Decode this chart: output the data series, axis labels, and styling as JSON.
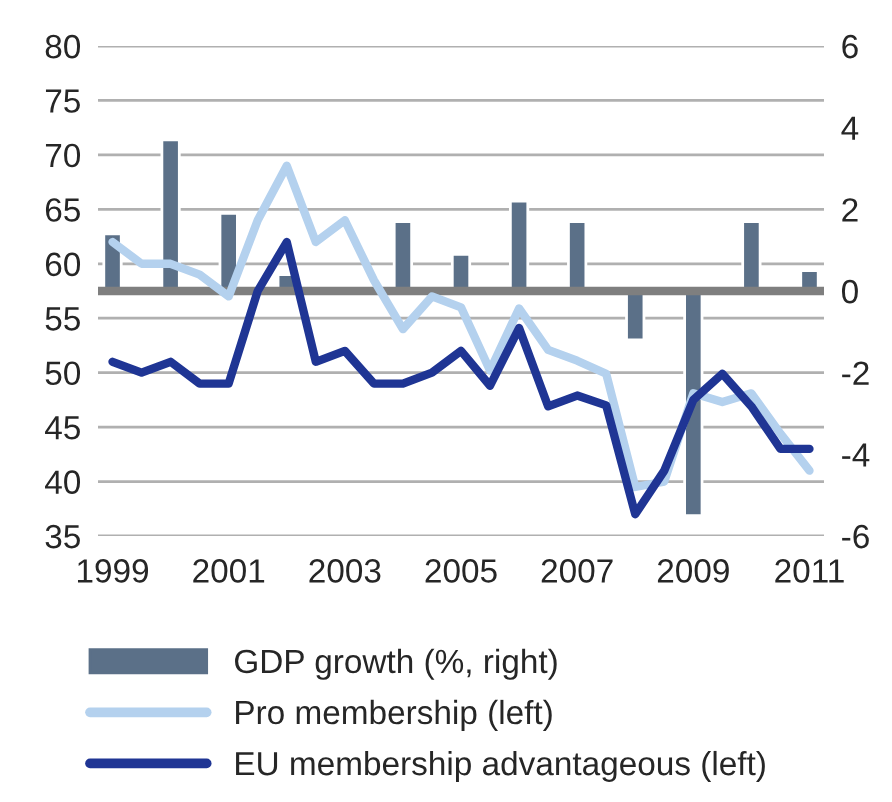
{
  "chart_data": {
    "type": "line",
    "xlim": [
      1998.75,
      2011.25
    ],
    "xticks": [
      1999,
      2001,
      2003,
      2005,
      2007,
      2009,
      2011
    ],
    "ylim": [
      35,
      80
    ],
    "yticks": [
      35,
      40,
      45,
      50,
      55,
      60,
      65,
      70,
      75,
      80
    ],
    "y2lim": [
      -6,
      6
    ],
    "y2ticks": [
      -6,
      -4,
      -2,
      0,
      2,
      4,
      6
    ],
    "grid": "y",
    "legend": "bottom",
    "ref_lines": [
      {
        "axis": "y2",
        "value": 0,
        "color": "#7f7f7f"
      }
    ],
    "series": [
      {
        "name": "GDP growth (%, right)",
        "type": "bar",
        "axis": "y2",
        "color": "#5b7088",
        "x": [
          1999,
          2000,
          2001,
          2002,
          2003,
          2004,
          2005,
          2006,
          2007,
          2008,
          2009,
          2010,
          2011
        ],
        "values": [
          1.4,
          3.7,
          1.9,
          0.4,
          null,
          1.7,
          0.9,
          2.2,
          1.7,
          -1.2,
          -5.5,
          1.7,
          0.5
        ]
      },
      {
        "name": "Pro membership (left)",
        "color": "#b4d1ee",
        "x": [
          1999,
          1999.5,
          2000,
          2000.5,
          2001,
          2001.5,
          2002,
          2002.5,
          2003,
          2003.5,
          2004,
          2004.5,
          2005,
          2005.5,
          2006,
          2006.5,
          2007,
          2007.5,
          2008,
          2008.5,
          2009,
          2009.5,
          2010,
          2010.5,
          2011
        ],
        "values": [
          62,
          60,
          60,
          59,
          57,
          64,
          69,
          62,
          64,
          58.5,
          54,
          57,
          56,
          50.2,
          55.9,
          52.1,
          51.1,
          49.9,
          39.5,
          40,
          48.1,
          47.3,
          48.1,
          44.4,
          41
        ]
      },
      {
        "name": "EU membership advantageous (left)",
        "color": "#1f3594",
        "x": [
          1999,
          1999.5,
          2000,
          2000.5,
          2001,
          2001.5,
          2002,
          2002.5,
          2003,
          2003.5,
          2004,
          2004.5,
          2005,
          2005.5,
          2006,
          2006.5,
          2007,
          2007.5,
          2008,
          2008.5,
          2009,
          2009.5,
          2010,
          2010.5,
          2011
        ],
        "values": [
          51,
          50,
          51,
          49,
          49,
          57.5,
          62,
          51,
          52,
          49,
          49,
          50,
          52,
          48.8,
          54.1,
          46.9,
          47.9,
          47,
          37,
          41,
          47.5,
          49.9,
          46.9,
          43,
          43
        ]
      }
    ]
  }
}
